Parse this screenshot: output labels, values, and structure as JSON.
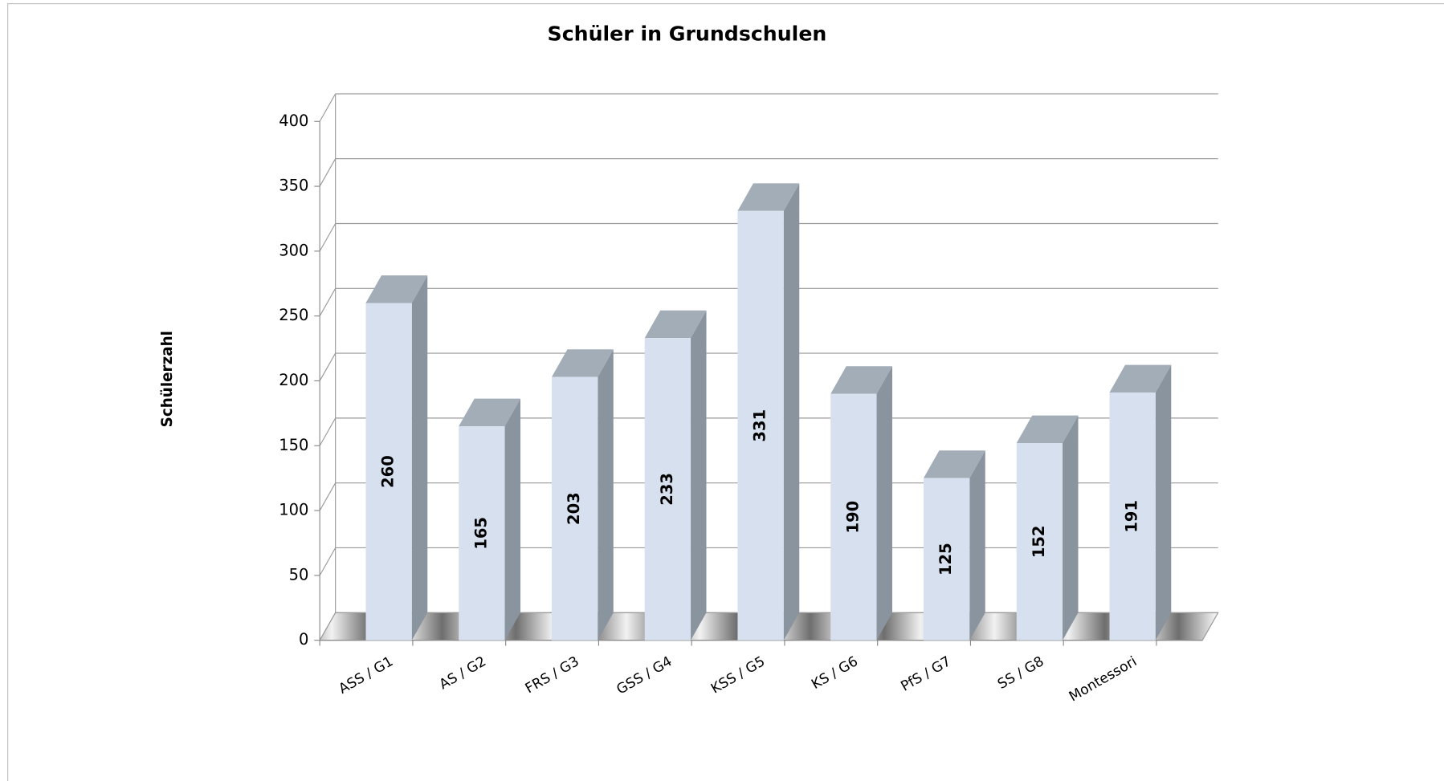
{
  "chart_data": {
    "type": "bar3d",
    "title": "Schüler in Grundschulen",
    "y_label": "Schülerzahl",
    "categories": [
      "ASS / G1",
      "AS / G2",
      "FRS / G3",
      "GSS / G4",
      "KSS / G5",
      "KS / G6",
      "PfS / G7",
      "SS / G8",
      "Montessori"
    ],
    "values": [
      260,
      165,
      203,
      233,
      331,
      190,
      125,
      152,
      191
    ],
    "color": "#d6e0ee",
    "ylim": [
      0,
      400
    ],
    "yticks": [
      0,
      50,
      100,
      150,
      200,
      250,
      300,
      350,
      400
    ],
    "grid": true
  }
}
